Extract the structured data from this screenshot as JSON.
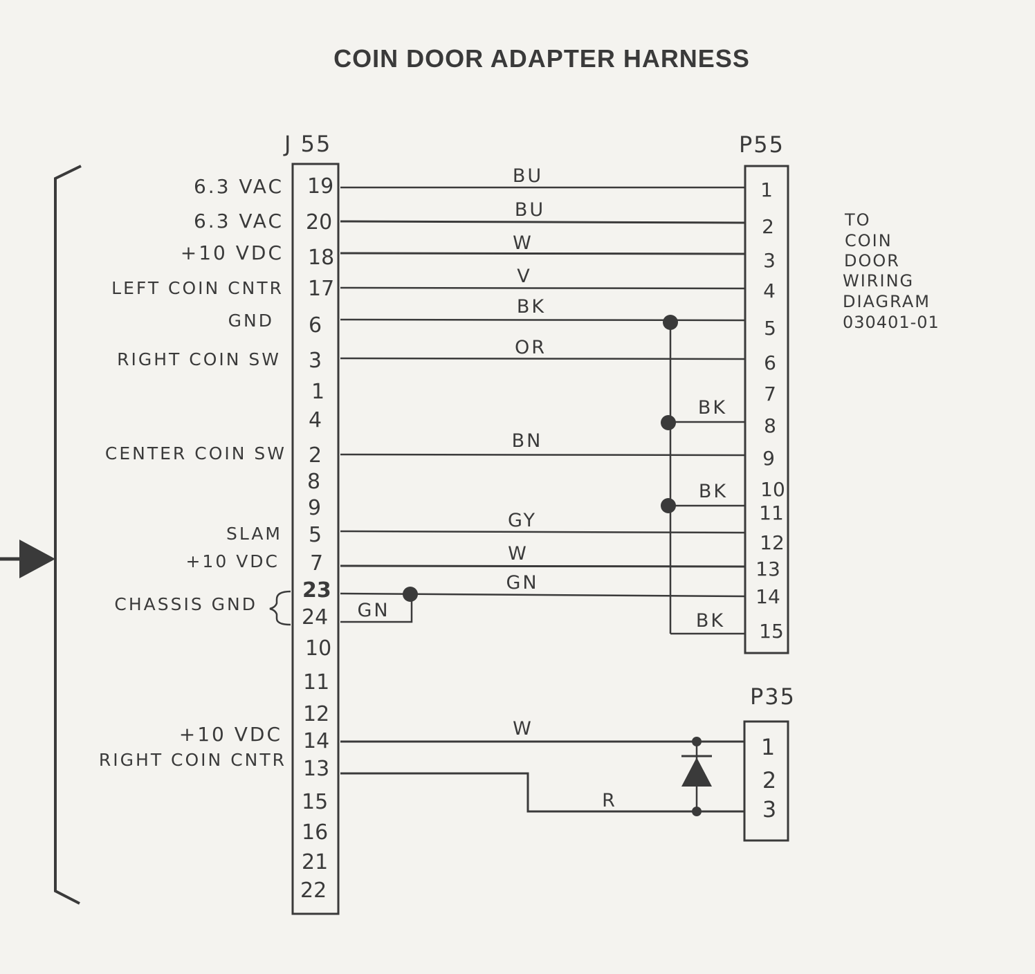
{
  "title": "COIN DOOR ADAPTER HARNESS",
  "connectors": {
    "j55": "J 55",
    "p55": "P55",
    "p35": "P35"
  },
  "j55_pins": [
    {
      "pin": "19",
      "signal": "6.3 VAC"
    },
    {
      "pin": "20",
      "signal": "6.3 VAC"
    },
    {
      "pin": "18",
      "signal": "+10 VDC"
    },
    {
      "pin": "17",
      "signal": "LEFT COIN CNTR"
    },
    {
      "pin": "6",
      "signal": "GND"
    },
    {
      "pin": "3",
      "signal": "RIGHT COIN SW"
    },
    {
      "pin": "1",
      "signal": ""
    },
    {
      "pin": "4",
      "signal": ""
    },
    {
      "pin": "2",
      "signal": "CENTER COIN SW"
    },
    {
      "pin": "8",
      "signal": ""
    },
    {
      "pin": "9",
      "signal": ""
    },
    {
      "pin": "5",
      "signal": "SLAM"
    },
    {
      "pin": "7",
      "signal": "+10 VDC"
    },
    {
      "pin": "23",
      "signal": ""
    },
    {
      "pin": "24",
      "signal": ""
    },
    {
      "pin": "10",
      "signal": ""
    },
    {
      "pin": "11",
      "signal": ""
    },
    {
      "pin": "12",
      "signal": ""
    },
    {
      "pin": "14",
      "signal": "+10 VDC"
    },
    {
      "pin": "13",
      "signal": "RIGHT COIN CNTR"
    },
    {
      "pin": "15",
      "signal": ""
    },
    {
      "pin": "16",
      "signal": ""
    },
    {
      "pin": "21",
      "signal": ""
    },
    {
      "pin": "22",
      "signal": ""
    }
  ],
  "chassis_gnd_label": "CHASSIS GND",
  "p55_pins": [
    "1",
    "2",
    "3",
    "4",
    "5",
    "6",
    "7",
    "8",
    "9",
    "10",
    "11",
    "12",
    "13",
    "14",
    "15"
  ],
  "p35_pins": [
    "1",
    "2",
    "3"
  ],
  "wires": [
    {
      "from": "J55-19",
      "to": "P55-1",
      "color": "BU"
    },
    {
      "from": "J55-20",
      "to": "P55-2",
      "color": "BU"
    },
    {
      "from": "J55-18",
      "to": "P55-3",
      "color": "W"
    },
    {
      "from": "J55-17",
      "to": "P55-4",
      "color": "V"
    },
    {
      "from": "J55-6",
      "to": "P55-5",
      "color": "BK"
    },
    {
      "from": "J55-3",
      "to": "P55-6",
      "color": "OR"
    },
    {
      "from": "GND bus",
      "to": "P55-8",
      "color": "BK"
    },
    {
      "from": "J55-2",
      "to": "P55-9",
      "color": "BN"
    },
    {
      "from": "GND bus",
      "to": "P55-11",
      "color": "BK"
    },
    {
      "from": "J55-5",
      "to": "P55-12",
      "color": "GY"
    },
    {
      "from": "J55-7",
      "to": "P55-13",
      "color": "W"
    },
    {
      "from": "J55-23",
      "to": "P55-14",
      "color": "GN"
    },
    {
      "from": "J55-24",
      "to": "J55-23",
      "color": "GN"
    },
    {
      "from": "GND bus",
      "to": "P55-15",
      "color": "BK"
    },
    {
      "from": "J55-14",
      "to": "P35-1",
      "color": "W"
    },
    {
      "from": "J55-13",
      "to": "P35-3",
      "color": "R"
    }
  ],
  "note": [
    "TO",
    "COIN",
    "DOOR",
    "WIRING",
    "DIAGRAM",
    "030401-01"
  ]
}
